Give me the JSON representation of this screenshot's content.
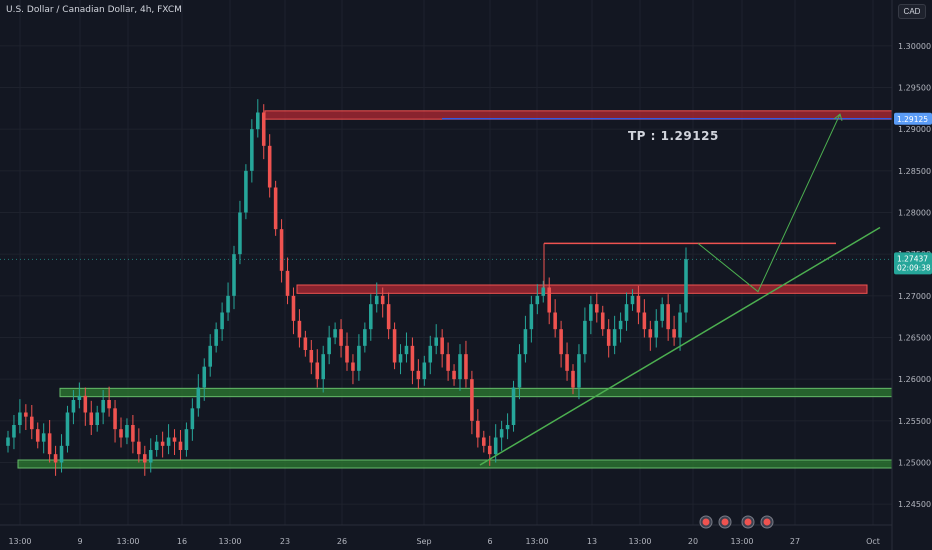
{
  "header": {
    "symbol": "U.S. Dollar / Canadian Dollar, 4h, FXCM",
    "currency": "CAD"
  },
  "colors": {
    "background": "#131722",
    "bull": "#26a69a",
    "bear": "#ef5350",
    "resistance_zone": "#b22833",
    "support_zone": "#2e7d32",
    "trendline": "#4caf50",
    "tp_line": "#2962ff",
    "price_label": "#26a69a"
  },
  "chart_data": {
    "type": "candlestick",
    "symbol": "USDCAD",
    "timeframe": "4h",
    "yaxis_ticks": [
      "1.30000",
      "1.29500",
      "1.29000",
      "1.28500",
      "1.28000",
      "1.27500",
      "1.27000",
      "1.26500",
      "1.26000",
      "1.25500",
      "1.25000",
      "1.24500"
    ],
    "ylim": [
      1.2425,
      1.3055
    ],
    "xaxis_ticks": [
      "13:00",
      "9",
      "13:00",
      "16",
      "13:00",
      "23",
      "26",
      "Sep",
      "6",
      "13:00",
      "13",
      "13:00",
      "20",
      "13:00",
      "27",
      "Oct"
    ],
    "current_price": "1.27437",
    "countdown": "02:09:38",
    "tp_label": "TP : 1.29125",
    "tp_value": "1.29125",
    "zones": [
      {
        "name": "top-resistance",
        "type": "resistance",
        "low": 1.2912,
        "high": 1.2922
      },
      {
        "name": "mid-resistance",
        "type": "resistance",
        "low": 1.2703,
        "high": 1.2713
      },
      {
        "name": "upper-support",
        "type": "support",
        "low": 1.2579,
        "high": 1.2589
      },
      {
        "name": "lower-support",
        "type": "support",
        "low": 1.2494,
        "high": 1.2503
      }
    ],
    "closes": [
      1.253,
      1.2545,
      1.256,
      1.2555,
      1.254,
      1.2525,
      1.2535,
      1.251,
      1.25,
      1.252,
      1.256,
      1.2575,
      1.258,
      1.256,
      1.2545,
      1.256,
      1.2575,
      1.2565,
      1.254,
      1.253,
      1.2545,
      1.2525,
      1.251,
      1.25,
      1.2515,
      1.2525,
      1.252,
      1.253,
      1.2525,
      1.2515,
      1.254,
      1.2565,
      1.259,
      1.2615,
      1.264,
      1.266,
      1.268,
      1.27,
      1.275,
      1.28,
      1.285,
      1.29,
      1.292,
      1.288,
      1.283,
      1.278,
      1.273,
      1.27,
      1.267,
      1.265,
      1.2635,
      1.262,
      1.26,
      1.263,
      1.265,
      1.266,
      1.264,
      1.262,
      1.261,
      1.264,
      1.266,
      1.269,
      1.27,
      1.269,
      1.266,
      1.262,
      1.263,
      1.264,
      1.261,
      1.26,
      1.262,
      1.264,
      1.265,
      1.263,
      1.261,
      1.26,
      1.263,
      1.26,
      1.255,
      1.253,
      1.252,
      1.251,
      1.253,
      1.254,
      1.2545,
      1.259,
      1.263,
      1.266,
      1.269,
      1.27,
      1.271,
      1.268,
      1.266,
      1.263,
      1.261,
      1.259,
      1.263,
      1.267,
      1.269,
      1.268,
      1.266,
      1.264,
      1.266,
      1.267,
      1.269,
      1.27,
      1.268,
      1.266,
      1.265,
      1.267,
      1.269,
      1.266,
      1.265,
      1.268,
      1.2744
    ]
  }
}
